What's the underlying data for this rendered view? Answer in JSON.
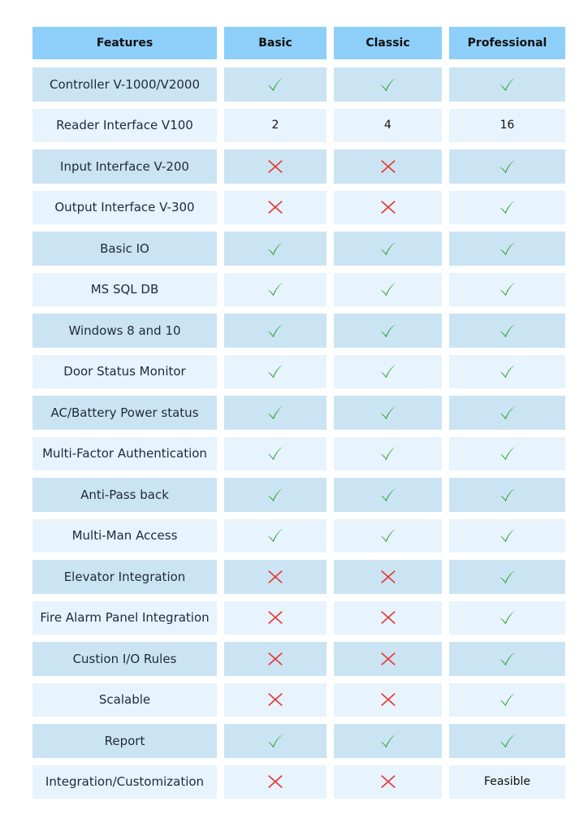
{
  "colors": {
    "header": "#8ecffa",
    "row_odd": "#cbe4f3",
    "row_even": "#e7f3fd",
    "check": "#1e9a1e",
    "cross": "#e53935"
  },
  "headers": [
    "Features",
    "Basic",
    "Classic",
    "Professional"
  ],
  "rows": [
    {
      "feature": "Controller V-1000/V2000",
      "values": [
        "check",
        "check",
        "check"
      ]
    },
    {
      "feature": "Reader Interface V100",
      "values": [
        "2",
        "4",
        "16"
      ]
    },
    {
      "feature": "Input Interface V-200",
      "values": [
        "cross",
        "cross",
        "check"
      ]
    },
    {
      "feature": "Output Interface V-300",
      "values": [
        "cross",
        "cross",
        "check"
      ]
    },
    {
      "feature": "Basic IO",
      "values": [
        "check",
        "check",
        "check"
      ]
    },
    {
      "feature": "MS SQL DB",
      "values": [
        "check",
        "check",
        "check"
      ]
    },
    {
      "feature": "Windows 8 and 10",
      "values": [
        "check",
        "check",
        "check"
      ]
    },
    {
      "feature": "Door Status Monitor",
      "values": [
        "check",
        "check",
        "check"
      ]
    },
    {
      "feature": "AC/Battery Power status",
      "values": [
        "check",
        "check",
        "check"
      ]
    },
    {
      "feature": "Multi-Factor Authentication",
      "values": [
        "check",
        "check",
        "check"
      ]
    },
    {
      "feature": "Anti-Pass back",
      "values": [
        "check",
        "check",
        "check"
      ]
    },
    {
      "feature": "Multi-Man Access",
      "values": [
        "check",
        "check",
        "check"
      ]
    },
    {
      "feature": "Elevator Integration",
      "values": [
        "cross",
        "cross",
        "check"
      ]
    },
    {
      "feature": "Fire Alarm Panel Integration",
      "values": [
        "cross",
        "cross",
        "check"
      ]
    },
    {
      "feature": "Custion I/O Rules",
      "values": [
        "cross",
        "cross",
        "check"
      ]
    },
    {
      "feature": "Scalable",
      "values": [
        "cross",
        "cross",
        "check"
      ]
    },
    {
      "feature": "Report",
      "values": [
        "check",
        "check",
        "check"
      ]
    },
    {
      "feature": "Integration/Customization",
      "values": [
        "cross",
        "cross",
        "Feasible"
      ]
    }
  ]
}
